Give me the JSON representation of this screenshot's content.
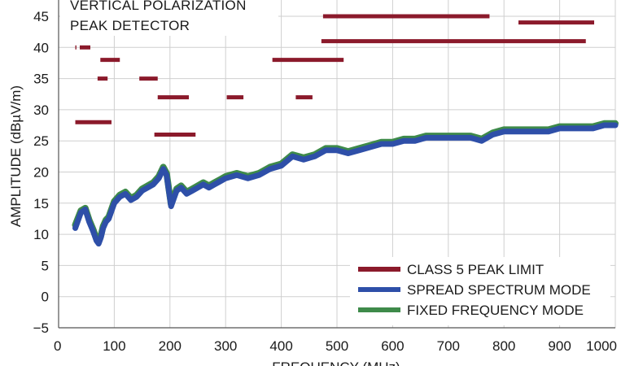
{
  "chart_data": {
    "type": "line",
    "title_lines": [
      "VERTICAL POLARIZATION",
      "PEAK DETECTOR"
    ],
    "xlabel": "FREQUENCY (MHz)",
    "ylabel": "AMPLITUDE (dBµV/m)",
    "xlim": [
      0,
      1000
    ],
    "ylim": [
      -5,
      45
    ],
    "x_ticks": [
      "0",
      "100",
      "200",
      "300",
      "400",
      "500",
      "600",
      "700",
      "800",
      "900",
      "1000"
    ],
    "y_ticks": [
      "−5",
      "0",
      "5",
      "10",
      "15",
      "20",
      "25",
      "30",
      "35",
      "40",
      "45"
    ],
    "grid": true,
    "legend_position": "bottom-right",
    "colors": {
      "limit": "#8b1a2b",
      "spread": "#2e4fa8",
      "fixed": "#3e8a4a",
      "grid": "#cfcfcf"
    },
    "limit_segments": [
      {
        "x": [
          30,
          32
        ],
        "y": 40
      },
      {
        "x": [
          38,
          57
        ],
        "y": 40
      },
      {
        "x": [
          75,
          110
        ],
        "y": 38
      },
      {
        "x": [
          70,
          88
        ],
        "y": 35
      },
      {
        "x": [
          145,
          178
        ],
        "y": 35
      },
      {
        "x": [
          30,
          95
        ],
        "y": 28
      },
      {
        "x": [
          178,
          234
        ],
        "y": 32
      },
      {
        "x": [
          172,
          246
        ],
        "y": 26
      },
      {
        "x": [
          302,
          332
        ],
        "y": 32
      },
      {
        "x": [
          384,
          512
        ],
        "y": 38
      },
      {
        "x": [
          426,
          456
        ],
        "y": 32
      },
      {
        "x": [
          475,
          774
        ],
        "y": 45
      },
      {
        "x": [
          826,
          962
        ],
        "y": 44
      },
      {
        "x": [
          472,
          947
        ],
        "y": 41
      }
    ],
    "series": [
      {
        "name": "SPREAD SPECTRUM MODE",
        "x": [
          30,
          40,
          48,
          55,
          62,
          68,
          72,
          76,
          80,
          85,
          90,
          100,
          110,
          120,
          130,
          140,
          150,
          160,
          170,
          180,
          188,
          194,
          198,
          202,
          206,
          212,
          220,
          230,
          240,
          250,
          260,
          270,
          280,
          290,
          300,
          320,
          340,
          360,
          380,
          400,
          420,
          440,
          460,
          480,
          500,
          520,
          540,
          560,
          580,
          600,
          620,
          640,
          660,
          680,
          700,
          720,
          740,
          760,
          780,
          800,
          820,
          840,
          860,
          880,
          900,
          920,
          940,
          960,
          980,
          1000
        ],
        "values": [
          11,
          13.5,
          14,
          12,
          10.5,
          9,
          8.5,
          9.5,
          11,
          12,
          12.5,
          15,
          16,
          16.5,
          15.5,
          16,
          17,
          17.5,
          18,
          19,
          20.5,
          19.5,
          17,
          14.5,
          15.5,
          17,
          17.5,
          16.5,
          17,
          17.5,
          18,
          17.5,
          18,
          18.5,
          19,
          19.5,
          19,
          19.5,
          20.5,
          21,
          22.5,
          22,
          22.5,
          23.5,
          23.5,
          23,
          23.5,
          24,
          24.5,
          24.5,
          25,
          25,
          25.5,
          25.5,
          25.5,
          25.5,
          25.5,
          25,
          26,
          26.5,
          26.5,
          26.5,
          26.5,
          26.5,
          27,
          27,
          27,
          27,
          27.5,
          27.5
        ]
      },
      {
        "name": "FIXED FREQUENCY MODE",
        "x": [
          30,
          40,
          48,
          55,
          62,
          68,
          72,
          76,
          80,
          85,
          90,
          100,
          110,
          120,
          130,
          140,
          150,
          160,
          170,
          180,
          188,
          194,
          198,
          202,
          206,
          212,
          220,
          230,
          240,
          250,
          260,
          270,
          280,
          290,
          300,
          320,
          340,
          360,
          380,
          400,
          420,
          440,
          460,
          480,
          500,
          520,
          540,
          560,
          580,
          600,
          620,
          640,
          660,
          680,
          700,
          720,
          740,
          760,
          780,
          800,
          820,
          840,
          860,
          880,
          900,
          920,
          940,
          960,
          980,
          1000
        ],
        "values": [
          11.5,
          13.8,
          14.2,
          12.3,
          10.8,
          9.3,
          8.8,
          9.8,
          11.3,
          12.3,
          12.8,
          15.3,
          16.3,
          16.8,
          15.8,
          16.3,
          17.3,
          17.8,
          18.3,
          19.3,
          20.8,
          19.8,
          17.3,
          14.8,
          15.8,
          17.3,
          17.8,
          16.8,
          17.3,
          17.8,
          18.3,
          17.8,
          18.3,
          18.8,
          19.3,
          19.8,
          19.3,
          19.8,
          20.8,
          21.3,
          22.8,
          22.3,
          22.8,
          23.8,
          23.8,
          23.3,
          23.8,
          24.3,
          24.8,
          24.8,
          25.3,
          25.3,
          25.8,
          25.8,
          25.8,
          25.8,
          25.8,
          25.3,
          26.3,
          26.8,
          26.8,
          26.8,
          26.8,
          26.8,
          27.3,
          27.3,
          27.3,
          27.3,
          27.8,
          27.8
        ]
      }
    ],
    "legend": [
      {
        "label": "CLASS 5 PEAK LIMIT",
        "color": "#8b1a2b"
      },
      {
        "label": "SPREAD SPECTRUM MODE",
        "color": "#2e4fa8"
      },
      {
        "label": "FIXED FREQUENCY MODE",
        "color": "#3e8a4a"
      }
    ]
  }
}
